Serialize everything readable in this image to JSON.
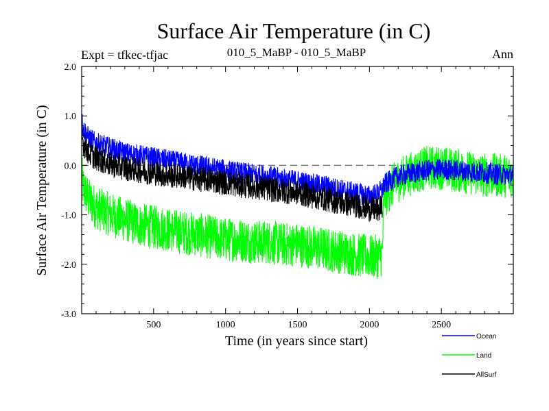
{
  "chart_data": {
    "type": "line",
    "title": "Surface Air Temperature (in C)",
    "subtitle_left": "Expt = tfkec-tfjac",
    "subtitle_center": "010_5_MaBP - 010_5_MaBP",
    "subtitle_right": "Ann",
    "xlabel": "Time (in years since start)",
    "ylabel": "Surface Air Temperature (in C)",
    "xlim": [
      0,
      3000
    ],
    "ylim": [
      -3.0,
      2.0
    ],
    "x_ticks": [
      500,
      1000,
      1500,
      2000,
      2500
    ],
    "x_tick_labels": [
      "500",
      "1000",
      "1500",
      "2000",
      "2500"
    ],
    "y_ticks": [
      2.0,
      1.0,
      0.0,
      -1.0,
      -2.0,
      -3.0
    ],
    "y_tick_labels": [
      "2.0",
      "1.0",
      "0.0",
      "-1.0",
      "-2.0",
      "-3.0"
    ],
    "zero_line": true,
    "legend_position": "bottom-right outside",
    "series": [
      {
        "name": "Ocean",
        "color": "#0000ff",
        "x": [
          0,
          10,
          50,
          100,
          200,
          300,
          400,
          500,
          600,
          700,
          800,
          900,
          1000,
          1100,
          1200,
          1300,
          1400,
          1500,
          1600,
          1700,
          1800,
          1900,
          2000,
          2050,
          2090,
          2100,
          2150,
          2200,
          2300,
          2400,
          2500,
          2600,
          2700,
          2800,
          2900,
          3000
        ],
        "y": [
          0.95,
          0.75,
          0.55,
          0.45,
          0.35,
          0.25,
          0.2,
          0.15,
          0.1,
          0.05,
          0.0,
          -0.05,
          -0.1,
          -0.15,
          -0.18,
          -0.22,
          -0.28,
          -0.32,
          -0.38,
          -0.42,
          -0.5,
          -0.55,
          -0.62,
          -0.58,
          -0.5,
          -0.4,
          -0.3,
          -0.22,
          -0.15,
          -0.1,
          -0.08,
          -0.1,
          -0.12,
          -0.15,
          -0.18,
          -0.2
        ]
      },
      {
        "name": "Land",
        "color": "#00ff00",
        "x": [
          0,
          10,
          50,
          100,
          200,
          300,
          400,
          500,
          600,
          700,
          800,
          900,
          1000,
          1100,
          1200,
          1300,
          1400,
          1500,
          1600,
          1700,
          1800,
          1900,
          2000,
          2050,
          2090,
          2100,
          2150,
          2200,
          2300,
          2400,
          2500,
          2600,
          2700,
          2800,
          2900,
          3000
        ],
        "y": [
          -0.15,
          -0.45,
          -0.7,
          -0.85,
          -1.0,
          -1.1,
          -1.2,
          -1.25,
          -1.3,
          -1.35,
          -1.4,
          -1.45,
          -1.5,
          -1.5,
          -1.55,
          -1.55,
          -1.6,
          -1.6,
          -1.65,
          -1.7,
          -1.75,
          -1.8,
          -1.85,
          -1.85,
          -1.8,
          -0.65,
          -0.45,
          -0.3,
          -0.15,
          -0.05,
          -0.05,
          -0.1,
          -0.15,
          -0.2,
          -0.2,
          -0.22
        ]
      },
      {
        "name": "AllSurf",
        "color": "#000000",
        "x": [
          0,
          10,
          50,
          100,
          200,
          300,
          400,
          500,
          600,
          700,
          800,
          900,
          1000,
          1100,
          1200,
          1300,
          1400,
          1500,
          1600,
          1700,
          1800,
          1900,
          2000,
          2050,
          2090
        ],
        "y": [
          0.65,
          0.45,
          0.25,
          0.15,
          0.02,
          -0.05,
          -0.1,
          -0.15,
          -0.2,
          -0.22,
          -0.27,
          -0.3,
          -0.35,
          -0.4,
          -0.43,
          -0.48,
          -0.52,
          -0.55,
          -0.62,
          -0.68,
          -0.75,
          -0.8,
          -0.88,
          -0.9,
          -0.85
        ]
      }
    ]
  }
}
